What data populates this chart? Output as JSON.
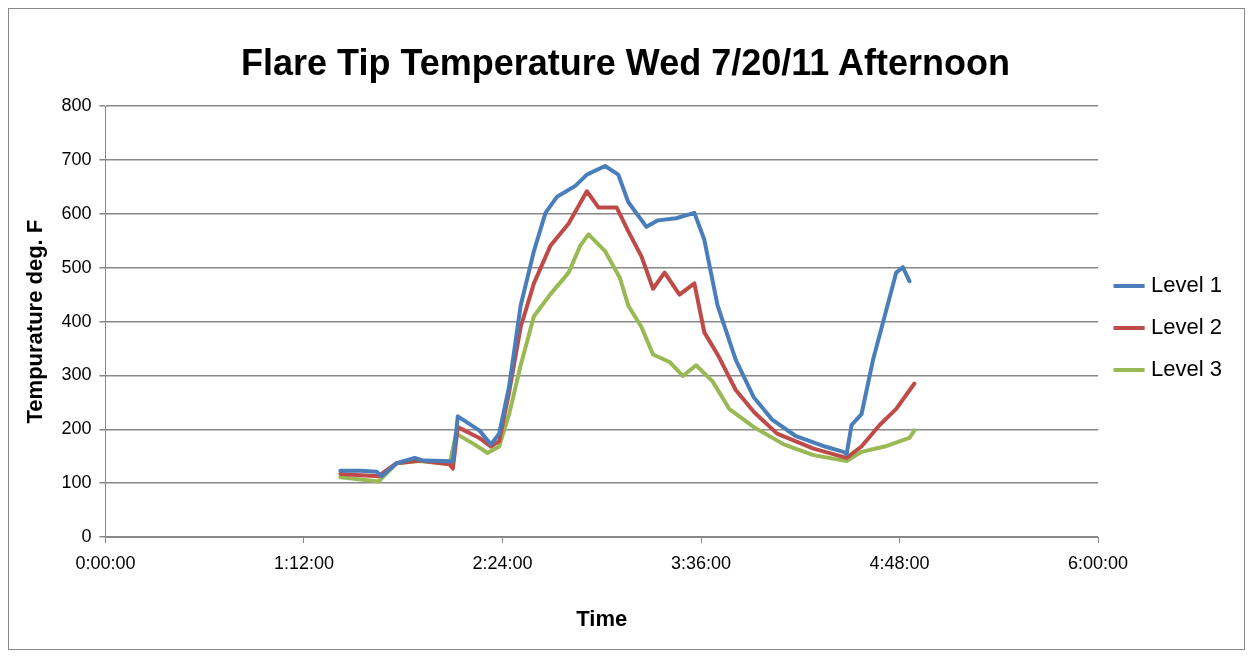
{
  "chart_data": {
    "type": "line",
    "title": "Flare Tip Temperature Wed 7/20/11 Afternoon",
    "xlabel": "Time",
    "ylabel": "Tempurature deg. F",
    "xlim": [
      0,
      6
    ],
    "xticks": [
      {
        "value": 0,
        "label": "0:00:00"
      },
      {
        "value": 1.2,
        "label": "1:12:00"
      },
      {
        "value": 2.4,
        "label": "2:24:00"
      },
      {
        "value": 3.6,
        "label": "3:36:00"
      },
      {
        "value": 4.8,
        "label": "4:48:00"
      },
      {
        "value": 6,
        "label": "6:00:00"
      }
    ],
    "ylim": [
      0,
      800
    ],
    "yticks": [
      0,
      100,
      200,
      300,
      400,
      500,
      600,
      700,
      800
    ],
    "grid": "y",
    "legend": "right",
    "marker": "none",
    "line_style": "solid",
    "series": [
      {
        "name": "Level 1",
        "color": "#4a7ebb",
        "x": [
          1.42,
          1.54,
          1.64,
          1.67,
          1.76,
          1.87,
          1.92,
          2.05,
          2.1,
          2.13,
          2.19,
          2.26,
          2.33,
          2.38,
          2.44,
          2.51,
          2.59,
          2.66,
          2.73,
          2.84,
          2.91,
          3.02,
          3.1,
          3.16,
          3.27,
          3.34,
          3.45,
          3.56,
          3.62,
          3.7,
          3.81,
          3.92,
          4.03,
          4.17,
          4.35,
          4.46,
          4.48,
          4.51,
          4.57,
          4.64,
          4.71,
          4.78,
          4.82,
          4.86
        ],
        "values": [
          123,
          123,
          121,
          113,
          137,
          147,
          142,
          141,
          140,
          224,
          212,
          198,
          172,
          192,
          279,
          430,
          531,
          602,
          632,
          652,
          673,
          689,
          673,
          622,
          576,
          588,
          592,
          602,
          552,
          430,
          329,
          259,
          218,
          188,
          168,
          158,
          154,
          208,
          228,
          329,
          410,
          491,
          501,
          475
        ]
      },
      {
        "name": "Level 2",
        "color": "#be4b48",
        "x": [
          1.42,
          1.65,
          1.76,
          1.9,
          2.08,
          2.1,
          2.13,
          2.26,
          2.33,
          2.38,
          2.44,
          2.51,
          2.59,
          2.69,
          2.8,
          2.91,
          2.98,
          3.09,
          3.16,
          3.24,
          3.31,
          3.38,
          3.47,
          3.56,
          3.62,
          3.7,
          3.81,
          3.92,
          4.06,
          4.28,
          4.48,
          4.57,
          4.68,
          4.78,
          4.89
        ],
        "values": [
          117,
          113,
          137,
          142,
          135,
          127,
          204,
          184,
          168,
          178,
          269,
          390,
          471,
          541,
          582,
          642,
          612,
          612,
          568,
          521,
          461,
          491,
          450,
          471,
          380,
          339,
          273,
          232,
          192,
          164,
          147,
          168,
          208,
          238,
          285
        ]
      },
      {
        "name": "Level 3",
        "color": "#98b954",
        "x": [
          1.42,
          1.65,
          1.76,
          1.9,
          2.08,
          2.12,
          2.23,
          2.31,
          2.38,
          2.44,
          2.51,
          2.59,
          2.69,
          2.8,
          2.87,
          2.92,
          3.02,
          3.11,
          3.16,
          3.24,
          3.31,
          3.41,
          3.49,
          3.57,
          3.67,
          3.77,
          3.92,
          4.1,
          4.28,
          4.48,
          4.57,
          4.71,
          4.86,
          4.89
        ],
        "values": [
          111,
          103,
          137,
          141,
          135,
          192,
          172,
          156,
          168,
          228,
          319,
          410,
          451,
          491,
          541,
          562,
          531,
          481,
          430,
          390,
          339,
          325,
          299,
          319,
          289,
          238,
          204,
          172,
          152,
          141,
          158,
          168,
          184,
          198
        ]
      }
    ]
  }
}
